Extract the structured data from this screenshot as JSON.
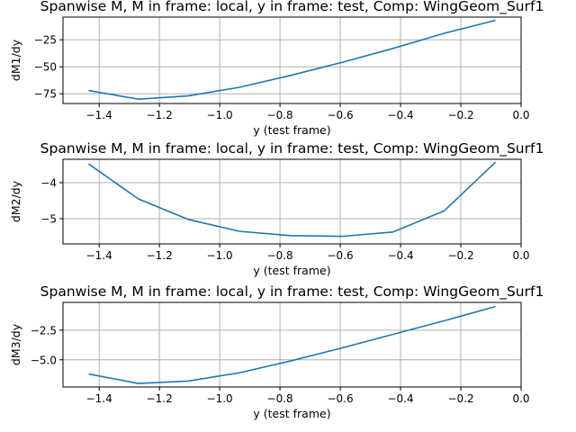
{
  "style": {
    "line_color": "#1f77b4",
    "grid_color": "#b0b0b0"
  },
  "chart_data": [
    {
      "type": "line",
      "title": "Spanwise M, M in frame: local, y in frame: test, Comp: WingGeom_Surf1",
      "xlabel": "y (test frame)",
      "ylabel": "dM1/dy",
      "grid": true,
      "xlim": [
        -1.52,
        0.0
      ],
      "ylim": [
        -84,
        -4
      ],
      "xticks": [
        -1.4,
        -1.2,
        -1.0,
        -0.8,
        -0.6,
        -0.4,
        -0.2,
        0.0
      ],
      "xtick_labels": [
        "−1.4",
        "−1.2",
        "−1.0",
        "−0.8",
        "−0.6",
        "−0.4",
        "−0.2",
        "0.0"
      ],
      "yticks": [
        -75,
        -50,
        -25
      ],
      "ytick_labels": [
        "−75",
        "−50",
        "−25"
      ],
      "series": [
        {
          "x": [
            -1.435,
            -1.27,
            -1.105,
            -0.935,
            -0.765,
            -0.595,
            -0.425,
            -0.255,
            -0.085
          ],
          "y": [
            -72,
            -80,
            -77,
            -69,
            -58,
            -46,
            -33,
            -19,
            -7
          ]
        }
      ]
    },
    {
      "type": "line",
      "title": "Spanwise M, M in frame: local, y in frame: test, Comp: WingGeom_Surf1",
      "xlabel": "y (test frame)",
      "ylabel": "dM2/dy",
      "grid": true,
      "xlim": [
        -1.52,
        0.0
      ],
      "ylim": [
        -5.7,
        -3.35
      ],
      "xticks": [
        -1.4,
        -1.2,
        -1.0,
        -0.8,
        -0.6,
        -0.4,
        -0.2,
        0.0
      ],
      "xtick_labels": [
        "−1.4",
        "−1.2",
        "−1.0",
        "−0.8",
        "−0.6",
        "−0.4",
        "−0.2",
        "0.0"
      ],
      "yticks": [
        -5,
        -4
      ],
      "ytick_labels": [
        "−5",
        "−4"
      ],
      "series": [
        {
          "x": [
            -1.435,
            -1.27,
            -1.105,
            -0.935,
            -0.765,
            -0.595,
            -0.425,
            -0.255,
            -0.085
          ],
          "y": [
            -3.48,
            -4.45,
            -5.02,
            -5.35,
            -5.47,
            -5.49,
            -5.37,
            -4.78,
            -3.43
          ]
        }
      ]
    },
    {
      "type": "line",
      "title": "Spanwise M, M in frame: local, y in frame: test, Comp: WingGeom_Surf1",
      "xlabel": "y (test frame)",
      "ylabel": "dM3/dy",
      "grid": true,
      "xlim": [
        -1.52,
        0.0
      ],
      "ylim": [
        -7.3,
        -0.15
      ],
      "xticks": [
        -1.4,
        -1.2,
        -1.0,
        -0.8,
        -0.6,
        -0.4,
        -0.2,
        0.0
      ],
      "xtick_labels": [
        "−1.4",
        "−1.2",
        "−1.0",
        "−0.8",
        "−0.6",
        "−0.4",
        "−0.2",
        "0.0"
      ],
      "yticks": [
        -5.0,
        -2.5
      ],
      "ytick_labels": [
        "−5.0",
        "−2.5"
      ],
      "series": [
        {
          "x": [
            -1.435,
            -1.27,
            -1.105,
            -0.935,
            -0.765,
            -0.595,
            -0.425,
            -0.255,
            -0.085
          ],
          "y": [
            -6.2,
            -7.0,
            -6.8,
            -6.1,
            -5.1,
            -4.0,
            -2.85,
            -1.7,
            -0.5
          ]
        }
      ]
    }
  ]
}
